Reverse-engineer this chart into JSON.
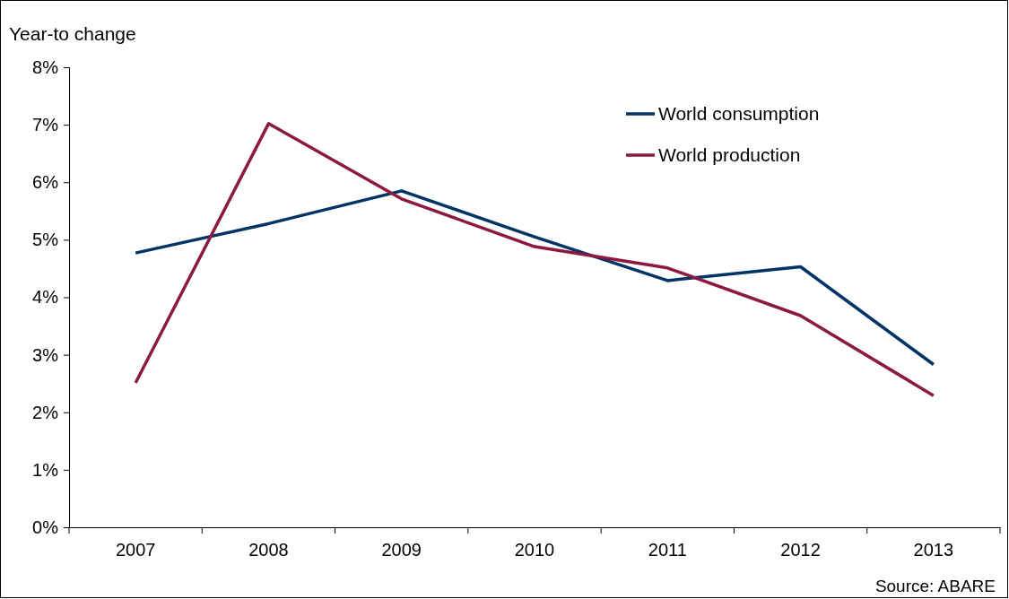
{
  "chart_data": {
    "type": "line",
    "ylabel": "Year-to change",
    "categories": [
      "2007",
      "2008",
      "2009",
      "2010",
      "2011",
      "2012",
      "2013"
    ],
    "series": [
      {
        "name": "World consumption",
        "color": "#003366",
        "values": [
          4.77,
          5.28,
          5.85,
          5.05,
          4.29,
          4.53,
          2.83
        ]
      },
      {
        "name": "World production",
        "color": "#8b1a3e",
        "values": [
          2.51,
          7.02,
          5.71,
          4.88,
          4.51,
          3.68,
          2.29
        ]
      }
    ],
    "ylim": [
      0,
      8
    ],
    "yticks": [
      {
        "value": 0,
        "label": "0%"
      },
      {
        "value": 1,
        "label": "1%"
      },
      {
        "value": 2,
        "label": "2%"
      },
      {
        "value": 3,
        "label": "3%"
      },
      {
        "value": 4,
        "label": "4%"
      },
      {
        "value": 5,
        "label": "5%"
      },
      {
        "value": 6,
        "label": "6%"
      },
      {
        "value": 7,
        "label": "7%"
      },
      {
        "value": 8,
        "label": "8%"
      }
    ],
    "grid": false,
    "legend": "top right",
    "marker": "none",
    "line_style": "solid",
    "annotations": [
      "Source: ABARE"
    ]
  }
}
